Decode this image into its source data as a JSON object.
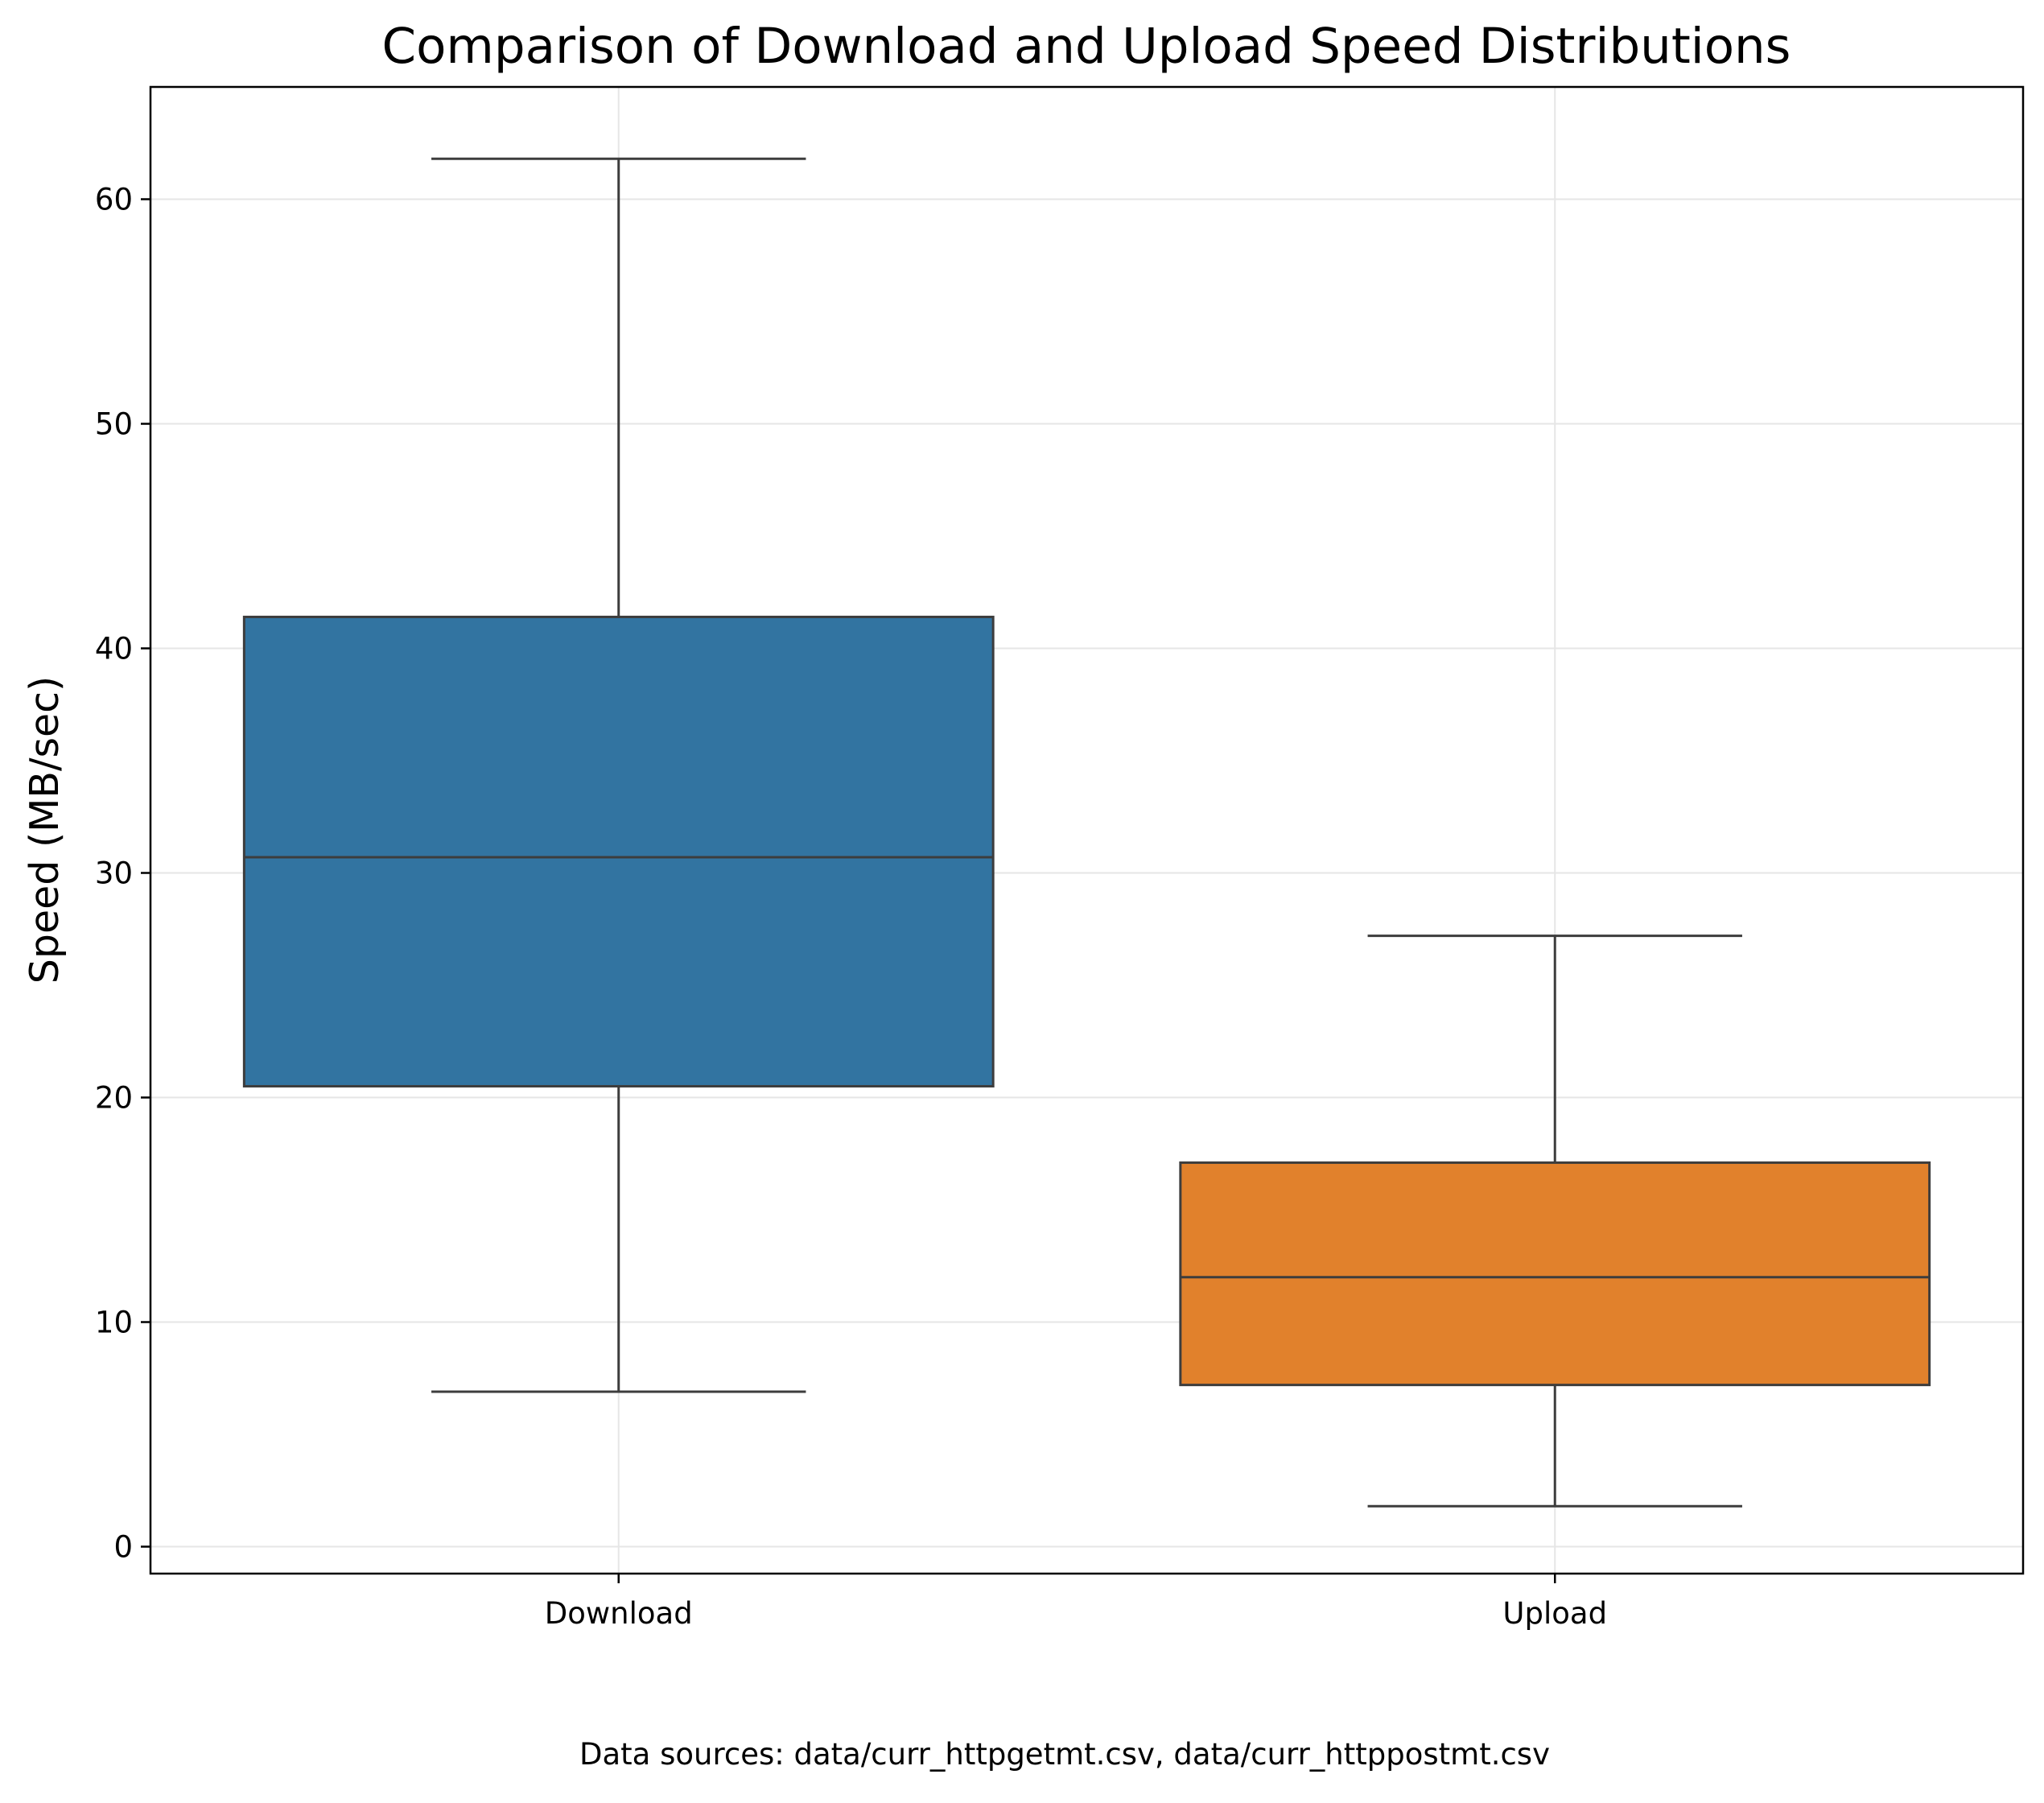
{
  "chart_data": {
    "type": "box",
    "title": "Comparison of Download and Upload Speed Distributions",
    "xlabel": "",
    "ylabel": "Speed (MB/sec)",
    "ylim": [
      -1.2,
      65
    ],
    "yticks": [
      0,
      10,
      20,
      30,
      40,
      50,
      60
    ],
    "grid": true,
    "categories": [
      "Download",
      "Upload"
    ],
    "boxes": [
      {
        "category": "Download",
        "whisker_low": 6.9,
        "q1": 20.5,
        "median": 30.7,
        "q3": 41.4,
        "whisker_high": 61.8,
        "color": "#3274a1"
      },
      {
        "category": "Upload",
        "whisker_low": 1.8,
        "q1": 7.2,
        "median": 12.0,
        "q3": 17.1,
        "whisker_high": 27.2,
        "color": "#e1812c"
      }
    ],
    "footnote": "Data sources: data/curr_httpgetmt.csv, data/curr_httppostmt.csv"
  },
  "colors": {
    "grid": "#e6e6e6",
    "box_edge": "#3d3d3d",
    "axes": "#000000"
  }
}
